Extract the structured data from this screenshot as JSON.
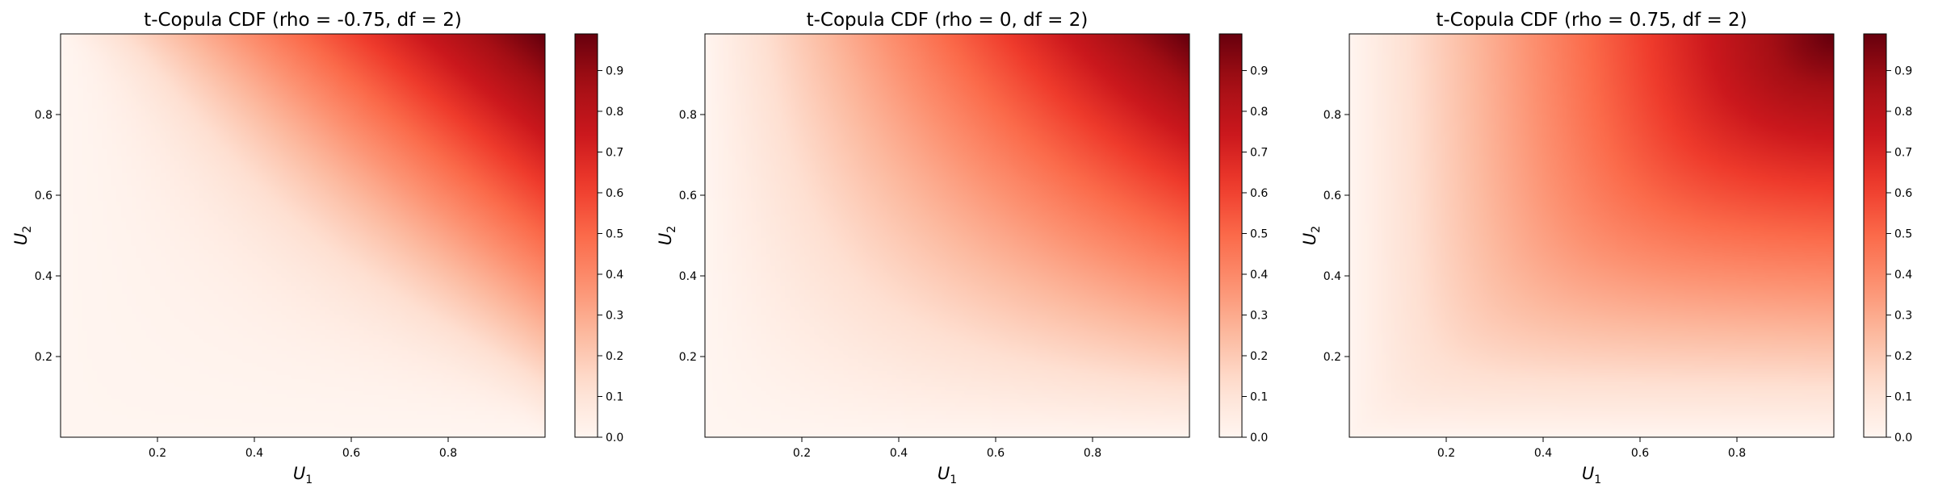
{
  "figure": {
    "background": "#ffffff"
  },
  "chart_data": [
    {
      "type": "heatmap",
      "title": "t-Copula CDF (rho = -0.75, df = 2)",
      "rho": -0.75,
      "df": 2,
      "xlabel": "U",
      "xlabel_sub": "1",
      "ylabel": "U",
      "ylabel_sub": "2",
      "xlim": [
        0,
        1
      ],
      "ylim": [
        0,
        1
      ],
      "xticks": [
        0.2,
        0.4,
        0.6,
        0.8
      ],
      "xtick_labels": [
        "0.2",
        "0.4",
        "0.6",
        "0.8"
      ],
      "yticks": [
        0.2,
        0.4,
        0.6,
        0.8
      ],
      "ytick_labels": [
        "0.2",
        "0.4",
        "0.6",
        "0.8"
      ],
      "colormap": "Reds",
      "colorbar": {
        "range": [
          0.0,
          0.99
        ],
        "ticks": [
          0.0,
          0.1,
          0.2,
          0.3,
          0.4,
          0.5,
          0.6,
          0.7,
          0.8,
          0.9
        ],
        "tick_labels": [
          "0.0",
          "0.1",
          "0.2",
          "0.3",
          "0.4",
          "0.5",
          "0.6",
          "0.7",
          "0.8",
          "0.9"
        ]
      },
      "grid": false,
      "legend": "none"
    },
    {
      "type": "heatmap",
      "title": "t-Copula CDF (rho = 0, df = 2)",
      "rho": 0,
      "df": 2,
      "xlabel": "U",
      "xlabel_sub": "1",
      "ylabel": "U",
      "ylabel_sub": "2",
      "xlim": [
        0,
        1
      ],
      "ylim": [
        0,
        1
      ],
      "xticks": [
        0.2,
        0.4,
        0.6,
        0.8
      ],
      "xtick_labels": [
        "0.2",
        "0.4",
        "0.6",
        "0.8"
      ],
      "yticks": [
        0.2,
        0.4,
        0.6,
        0.8
      ],
      "ytick_labels": [
        "0.2",
        "0.4",
        "0.6",
        "0.8"
      ],
      "colormap": "Reds",
      "colorbar": {
        "range": [
          0.0,
          0.99
        ],
        "ticks": [
          0.0,
          0.1,
          0.2,
          0.3,
          0.4,
          0.5,
          0.6,
          0.7,
          0.8,
          0.9
        ],
        "tick_labels": [
          "0.0",
          "0.1",
          "0.2",
          "0.3",
          "0.4",
          "0.5",
          "0.6",
          "0.7",
          "0.8",
          "0.9"
        ]
      },
      "grid": false,
      "legend": "none"
    },
    {
      "type": "heatmap",
      "title": "t-Copula CDF (rho = 0.75, df = 2)",
      "rho": 0.75,
      "df": 2,
      "xlabel": "U",
      "xlabel_sub": "1",
      "ylabel": "U",
      "ylabel_sub": "2",
      "xlim": [
        0,
        1
      ],
      "ylim": [
        0,
        1
      ],
      "xticks": [
        0.2,
        0.4,
        0.6,
        0.8
      ],
      "xtick_labels": [
        "0.2",
        "0.4",
        "0.6",
        "0.8"
      ],
      "yticks": [
        0.2,
        0.4,
        0.6,
        0.8
      ],
      "ytick_labels": [
        "0.2",
        "0.4",
        "0.6",
        "0.8"
      ],
      "colormap": "Reds",
      "colorbar": {
        "range": [
          0.0,
          0.99
        ],
        "ticks": [
          0.0,
          0.1,
          0.2,
          0.3,
          0.4,
          0.5,
          0.6,
          0.7,
          0.8,
          0.9
        ],
        "tick_labels": [
          "0.0",
          "0.1",
          "0.2",
          "0.3",
          "0.4",
          "0.5",
          "0.6",
          "0.7",
          "0.8",
          "0.9"
        ]
      },
      "grid": false,
      "legend": "none"
    }
  ]
}
